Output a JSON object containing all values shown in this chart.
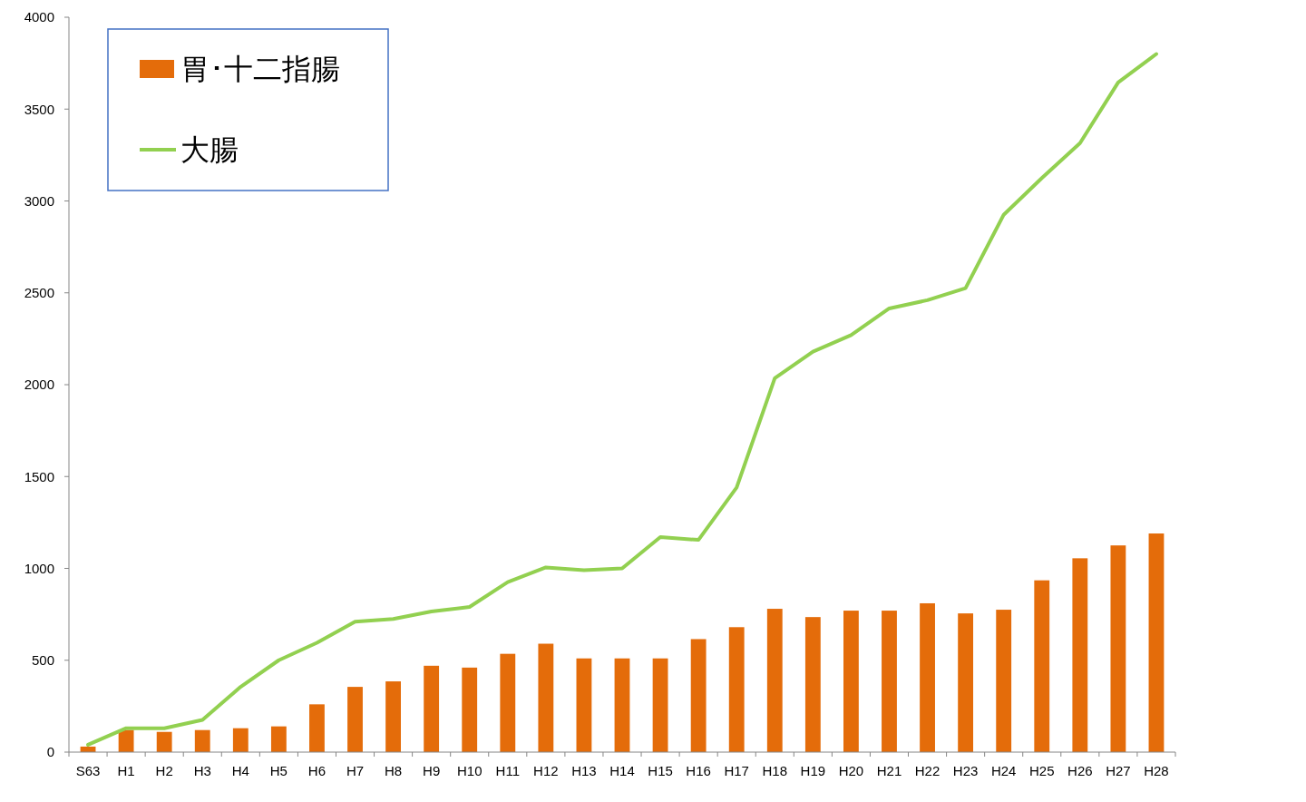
{
  "chart_data": {
    "type": "bar",
    "categories": [
      "S63",
      "H1",
      "H2",
      "H3",
      "H4",
      "H5",
      "H6",
      "H7",
      "H8",
      "H9",
      "H10",
      "H11",
      "H12",
      "H13",
      "H14",
      "H15",
      "H16",
      "H17",
      "H18",
      "H19",
      "H20",
      "H21",
      "H22",
      "H23",
      "H24",
      "H25",
      "H26",
      "H27",
      "H28"
    ],
    "series": [
      {
        "name": "胃･十二指腸",
        "color": "#e46c0a",
        "values": [
          30,
          120,
          110,
          120,
          130,
          140,
          260,
          355,
          385,
          470,
          460,
          535,
          590,
          510,
          510,
          510,
          615,
          680,
          780,
          735,
          770,
          770,
          810,
          755,
          775,
          935,
          1055,
          1125,
          1190
        ]
      },
      {
        "name": "大腸",
        "type": "line",
        "color": "#92d050",
        "values": [
          40,
          130,
          130,
          175,
          355,
          500,
          595,
          710,
          725,
          765,
          790,
          925,
          1005,
          990,
          1000,
          1170,
          1155,
          1440,
          2035,
          2180,
          2270,
          2415,
          2460,
          2525,
          2925,
          3125,
          3315,
          3645,
          3800
        ]
      }
    ],
    "ylim": [
      0,
      4000
    ],
    "yticks": [
      0,
      500,
      1000,
      1500,
      2000,
      2500,
      3000,
      3500,
      4000
    ],
    "grid": false,
    "legend": "top left",
    "marker": "none",
    "line_style": "solid"
  }
}
